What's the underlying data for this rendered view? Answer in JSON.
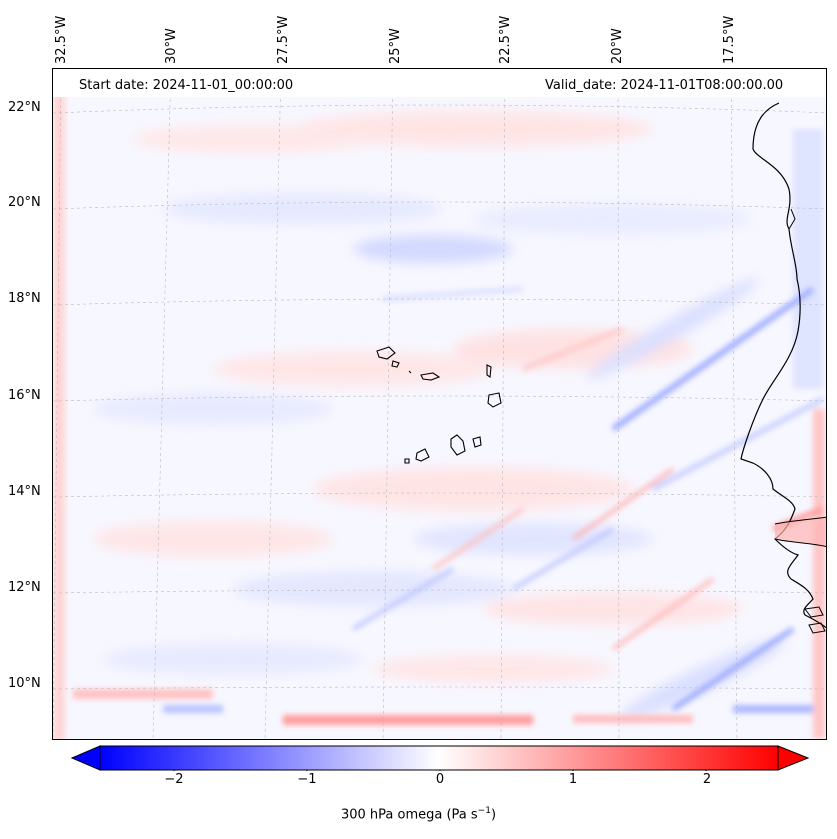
{
  "header": {
    "start_date": "Start date: 2024-11-01_00:00:00",
    "valid_date": "Valid_date: 2024-11-01T08:00:00.00"
  },
  "longitude_labels": [
    "32.5°W",
    "30°W",
    "27.5°W",
    "25°W",
    "22.5°W",
    "20°W",
    "17.5°W"
  ],
  "latitude_labels": [
    "22°N",
    "20°N",
    "18°N",
    "16°N",
    "14°N",
    "12°N",
    "10°N"
  ],
  "colorbar": {
    "ticks": [
      "−2",
      "−1",
      "0",
      "1",
      "2"
    ],
    "label_prefix": "300 hPa omega (Pa s",
    "label_exp": "−1",
    "label_suffix": ")",
    "colors": {
      "negative": "#0000ff",
      "neutral": "#ffffff",
      "positive": "#ff0000"
    }
  }
}
